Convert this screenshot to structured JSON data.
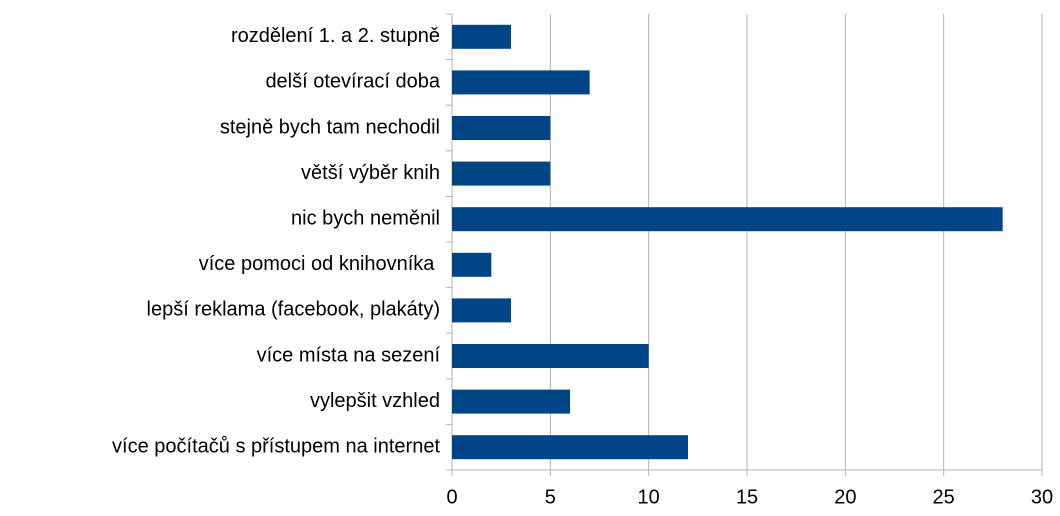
{
  "chart_data": {
    "type": "bar",
    "orientation": "horizontal",
    "categories": [
      "rozdělení 1. a 2. stupně",
      "delší otevírací doba",
      "stejně bych tam nechodil",
      "větší výběr knih",
      "nic bych neměnil",
      "více pomoci od knihovníka ",
      "lepší reklama (facebook, plakáty)",
      "více místa na sezení",
      "vylepšit vzhled",
      "více počítačů s přístupem na internet"
    ],
    "values": [
      3,
      7,
      5,
      5,
      28,
      2,
      3,
      10,
      6,
      12
    ],
    "color": "#004586",
    "xlim": [
      0,
      30
    ],
    "xticks": [
      0,
      5,
      10,
      15,
      20,
      25,
      30
    ],
    "grid": true
  }
}
